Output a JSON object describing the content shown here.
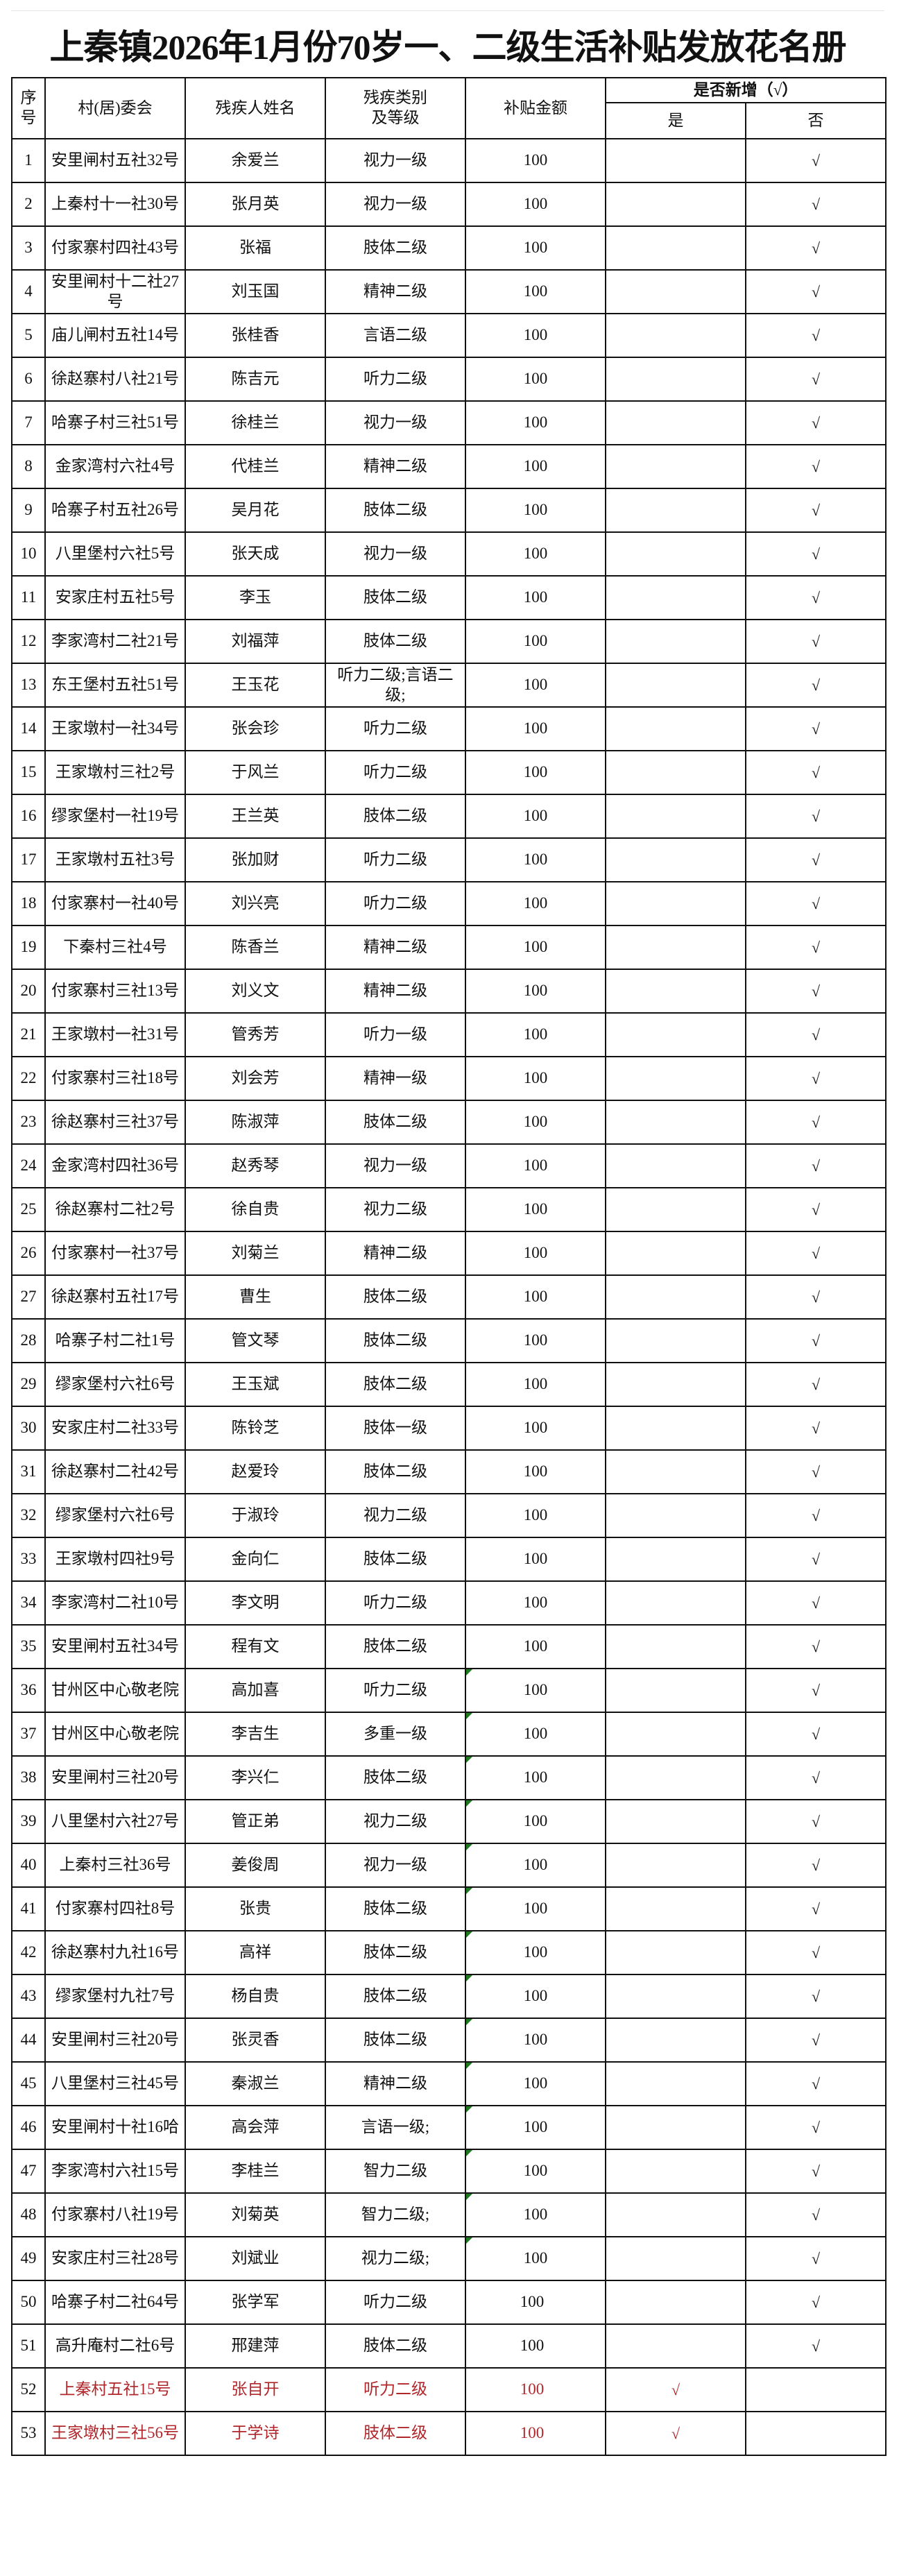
{
  "title": "上秦镇2026年1月份70岁一、二级生活补贴发放花名册",
  "headers": {
    "seq": "序号",
    "village": "村(居)委会",
    "name": "残疾人姓名",
    "category": "残疾类别及等级",
    "amount": "补贴金额",
    "is_new": "是否新增（√）",
    "yes": "是",
    "no": "否"
  },
  "colors": {
    "new_entry_text": "#b0262a",
    "cell_indicator": "#1f7a1f"
  },
  "rows": [
    {
      "seq": "1",
      "village": "安里闸村五社32号",
      "name": "余爱兰",
      "category": "视力一级",
      "amount": "100",
      "yes": "",
      "no": "√"
    },
    {
      "seq": "2",
      "village": "上秦村十一社30号",
      "name": "张月英",
      "category": "视力一级",
      "amount": "100",
      "yes": "",
      "no": "√"
    },
    {
      "seq": "3",
      "village": "付家寨村四社43号",
      "name": "张福",
      "category": "肢体二级",
      "amount": "100",
      "yes": "",
      "no": "√"
    },
    {
      "seq": "4",
      "village": "安里闸村十二社27号",
      "name": "刘玉国",
      "category": "精神二级",
      "amount": "100",
      "yes": "",
      "no": "√"
    },
    {
      "seq": "5",
      "village": "庙儿闸村五社14号",
      "name": "张桂香",
      "category": "言语二级",
      "amount": "100",
      "yes": "",
      "no": "√"
    },
    {
      "seq": "6",
      "village": "徐赵寨村八社21号",
      "name": "陈吉元",
      "category": "听力二级",
      "amount": "100",
      "yes": "",
      "no": "√"
    },
    {
      "seq": "7",
      "village": "哈寨子村三社51号",
      "name": "徐桂兰",
      "category": "视力一级",
      "amount": "100",
      "yes": "",
      "no": "√"
    },
    {
      "seq": "8",
      "village": "金家湾村六社4号",
      "name": "代桂兰",
      "category": "精神二级",
      "amount": "100",
      "yes": "",
      "no": "√"
    },
    {
      "seq": "9",
      "village": "哈寨子村五社26号",
      "name": "吴月花",
      "category": "肢体二级",
      "amount": "100",
      "yes": "",
      "no": "√"
    },
    {
      "seq": "10",
      "village": "八里堡村六社5号",
      "name": "张天成",
      "category": "视力一级",
      "amount": "100",
      "yes": "",
      "no": "√"
    },
    {
      "seq": "11",
      "village": "安家庄村五社5号",
      "name": "李玉",
      "category": "肢体二级",
      "amount": "100",
      "yes": "",
      "no": "√"
    },
    {
      "seq": "12",
      "village": "李家湾村二社21号",
      "name": "刘福萍",
      "category": "肢体二级",
      "amount": "100",
      "yes": "",
      "no": "√"
    },
    {
      "seq": "13",
      "village": "东王堡村五社51号",
      "name": "王玉花",
      "category": "听力二级;言语二级;",
      "amount": "100",
      "yes": "",
      "no": "√"
    },
    {
      "seq": "14",
      "village": "王家墩村一社34号",
      "name": "张会珍",
      "category": "听力二级",
      "amount": "100",
      "yes": "",
      "no": "√"
    },
    {
      "seq": "15",
      "village": "王家墩村三社2号",
      "name": "于风兰",
      "category": "听力二级",
      "amount": "100",
      "yes": "",
      "no": "√"
    },
    {
      "seq": "16",
      "village": "缪家堡村一社19号",
      "name": "王兰英",
      "category": "肢体二级",
      "amount": "100",
      "yes": "",
      "no": "√"
    },
    {
      "seq": "17",
      "village": "王家墩村五社3号",
      "name": "张加财",
      "category": "听力二级",
      "amount": "100",
      "yes": "",
      "no": "√"
    },
    {
      "seq": "18",
      "village": "付家寨村一社40号",
      "name": "刘兴亮",
      "category": "听力二级",
      "amount": "100",
      "yes": "",
      "no": "√"
    },
    {
      "seq": "19",
      "village": "下秦村三社4号",
      "name": "陈香兰",
      "category": "精神二级",
      "amount": "100",
      "yes": "",
      "no": "√"
    },
    {
      "seq": "20",
      "village": "付家寨村三社13号",
      "name": "刘义文",
      "category": "精神二级",
      "amount": "100",
      "yes": "",
      "no": "√"
    },
    {
      "seq": "21",
      "village": "王家墩村一社31号",
      "name": "管秀芳",
      "category": "听力一级",
      "amount": "100",
      "yes": "",
      "no": "√"
    },
    {
      "seq": "22",
      "village": "付家寨村三社18号",
      "name": "刘会芳",
      "category": "精神一级",
      "amount": "100",
      "yes": "",
      "no": "√"
    },
    {
      "seq": "23",
      "village": "徐赵寨村三社37号",
      "name": "陈淑萍",
      "category": "肢体二级",
      "amount": "100",
      "yes": "",
      "no": "√"
    },
    {
      "seq": "24",
      "village": "金家湾村四社36号",
      "name": "赵秀琴",
      "category": "视力一级",
      "amount": "100",
      "yes": "",
      "no": "√"
    },
    {
      "seq": "25",
      "village": "徐赵寨村二社2号",
      "name": "徐自贵",
      "category": "视力二级",
      "amount": "100",
      "yes": "",
      "no": "√"
    },
    {
      "seq": "26",
      "village": "付家寨村一社37号",
      "name": "刘菊兰",
      "category": "精神二级",
      "amount": "100",
      "yes": "",
      "no": "√"
    },
    {
      "seq": "27",
      "village": "徐赵寨村五社17号",
      "name": "曹生",
      "category": "肢体二级",
      "amount": "100",
      "yes": "",
      "no": "√"
    },
    {
      "seq": "28",
      "village": "哈寨子村二社1号",
      "name": "管文琴",
      "category": "肢体二级",
      "amount": "100",
      "yes": "",
      "no": "√"
    },
    {
      "seq": "29",
      "village": "缪家堡村六社6号",
      "name": "王玉斌",
      "category": "肢体二级",
      "amount": "100",
      "yes": "",
      "no": "√"
    },
    {
      "seq": "30",
      "village": "安家庄村二社33号",
      "name": "陈铃芝",
      "category": "肢体一级",
      "amount": "100",
      "yes": "",
      "no": "√"
    },
    {
      "seq": "31",
      "village": "徐赵寨村二社42号",
      "name": "赵爱玲",
      "category": "肢体二级",
      "amount": "100",
      "yes": "",
      "no": "√"
    },
    {
      "seq": "32",
      "village": "缪家堡村六社6号",
      "name": "于淑玲",
      "category": "视力二级",
      "amount": "100",
      "yes": "",
      "no": "√"
    },
    {
      "seq": "33",
      "village": "王家墩村四社9号",
      "name": "金向仁",
      "category": "肢体二级",
      "amount": "100",
      "yes": "",
      "no": "√"
    },
    {
      "seq": "34",
      "village": "李家湾村二社10号",
      "name": "李文明",
      "category": "听力二级",
      "amount": "100",
      "yes": "",
      "no": "√"
    },
    {
      "seq": "35",
      "village": "安里闸村五社34号",
      "name": "程有文",
      "category": "肢体二级",
      "amount": "100",
      "yes": "",
      "no": "√"
    },
    {
      "seq": "36",
      "village": "甘州区中心敬老院",
      "name": "高加喜",
      "category": "听力二级",
      "amount": "100",
      "yes": "",
      "no": "√",
      "indicator": true
    },
    {
      "seq": "37",
      "village": "甘州区中心敬老院",
      "name": "李吉生",
      "category": "多重一级",
      "amount": "100",
      "yes": "",
      "no": "√",
      "indicator": true
    },
    {
      "seq": "38",
      "village": "安里闸村三社20号",
      "name": "李兴仁",
      "category": "肢体二级",
      "amount": "100",
      "yes": "",
      "no": "√",
      "indicator": true
    },
    {
      "seq": "39",
      "village": "八里堡村六社27号",
      "name": "管正弟",
      "category": "视力二级",
      "amount": "100",
      "yes": "",
      "no": "√",
      "indicator": true
    },
    {
      "seq": "40",
      "village": "上秦村三社36号",
      "name": "姜俊周",
      "category": "视力一级",
      "amount": "100",
      "yes": "",
      "no": "√",
      "indicator": true
    },
    {
      "seq": "41",
      "village": "付家寨村四社8号",
      "name": "张贵",
      "category": "肢体二级",
      "amount": "100",
      "yes": "",
      "no": "√",
      "indicator": true
    },
    {
      "seq": "42",
      "village": "徐赵寨村九社16号",
      "name": "高祥",
      "category": "肢体二级",
      "amount": "100",
      "yes": "",
      "no": "√",
      "indicator": true
    },
    {
      "seq": "43",
      "village": "缪家堡村九社7号",
      "name": "杨自贵",
      "category": "肢体二级",
      "amount": "100",
      "yes": "",
      "no": "√",
      "indicator": true
    },
    {
      "seq": "44",
      "village": "安里闸村三社20号",
      "name": "张灵香",
      "category": "肢体二级",
      "amount": "100",
      "yes": "",
      "no": "√",
      "indicator": true
    },
    {
      "seq": "45",
      "village": "八里堡村三社45号",
      "name": "秦淑兰",
      "category": "精神二级",
      "amount": "100",
      "yes": "",
      "no": "√",
      "indicator": true
    },
    {
      "seq": "46",
      "village": "安里闸村十社16哈",
      "name": "高会萍",
      "category": "言语一级;",
      "amount": "100",
      "yes": "",
      "no": "√",
      "indicator": true
    },
    {
      "seq": "47",
      "village": "李家湾村六社15号",
      "name": "李桂兰",
      "category": "智力二级",
      "amount": "100",
      "yes": "",
      "no": "√",
      "indicator": true
    },
    {
      "seq": "48",
      "village": "付家寨村八社19号",
      "name": "刘菊英",
      "category": "智力二级;",
      "amount": "100",
      "yes": "",
      "no": "√",
      "indicator": true
    },
    {
      "seq": "49",
      "village": "安家庄村三社28号",
      "name": "刘斌业",
      "category": "视力二级;",
      "amount": "100",
      "yes": "",
      "no": "√",
      "indicator": true
    },
    {
      "seq": "50",
      "village": "哈寨子村二社64号",
      "name": "张学军",
      "category": "听力二级",
      "amount": "100",
      "yes": "",
      "no": "√"
    },
    {
      "seq": "51",
      "village": "高升庵村二社6号",
      "name": "邢建萍",
      "category": "肢体二级",
      "amount": "100",
      "yes": "",
      "no": "√"
    },
    {
      "seq": "52",
      "village": "上秦村五社15号",
      "name": "张自开",
      "category": "听力二级",
      "amount": "100",
      "yes": "√",
      "no": "",
      "new": true
    },
    {
      "seq": "53",
      "village": "王家墩村三社56号",
      "name": "于学诗",
      "category": "肢体二级",
      "amount": "100",
      "yes": "√",
      "no": "",
      "new": true
    }
  ]
}
